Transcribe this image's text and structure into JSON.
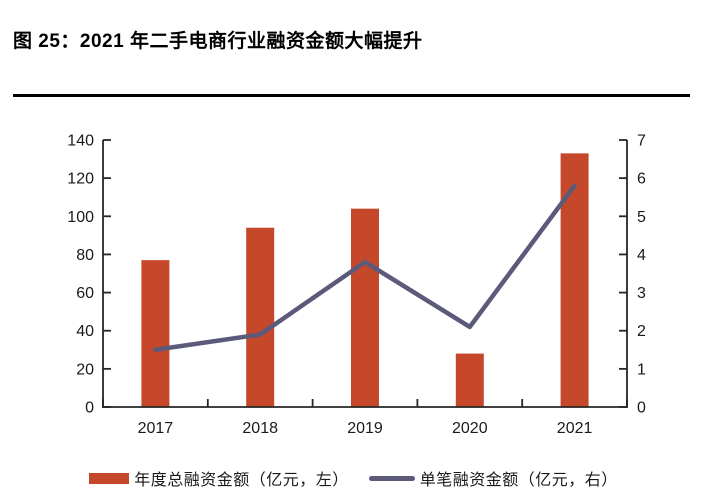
{
  "title": "图 25：2021 年二手电商行业融资金额大幅提升",
  "colors": {
    "bar": "#C5482B",
    "line": "#5C5A7A",
    "axis": "#262626",
    "tick_label": "#1a1a1a",
    "title": "#000000",
    "rule": "#000000"
  },
  "chart_data": {
    "type": "combo_bar_line",
    "categories": [
      "2017",
      "2018",
      "2019",
      "2020",
      "2021"
    ],
    "series": [
      {
        "name": "年度总融资金额（亿元，左）",
        "type": "bar",
        "axis": "left",
        "color": "#C5482B",
        "values": [
          77,
          94,
          104,
          28,
          133
        ]
      },
      {
        "name": "单笔融资金额（亿元，右）",
        "type": "line",
        "axis": "right",
        "color": "#5C5A7A",
        "values": [
          1.5,
          1.9,
          3.8,
          2.1,
          5.8
        ]
      }
    ],
    "left_axis": {
      "min": 0,
      "max": 140,
      "step": 20,
      "ticks": [
        0,
        20,
        40,
        60,
        80,
        100,
        120,
        140
      ]
    },
    "right_axis": {
      "min": 0,
      "max": 7,
      "step": 1,
      "ticks": [
        0,
        1,
        2,
        3,
        4,
        5,
        6,
        7
      ]
    },
    "grid": false,
    "legend_position": "bottom",
    "title": "图 25：2021 年二手电商行业融资金额大幅提升"
  }
}
